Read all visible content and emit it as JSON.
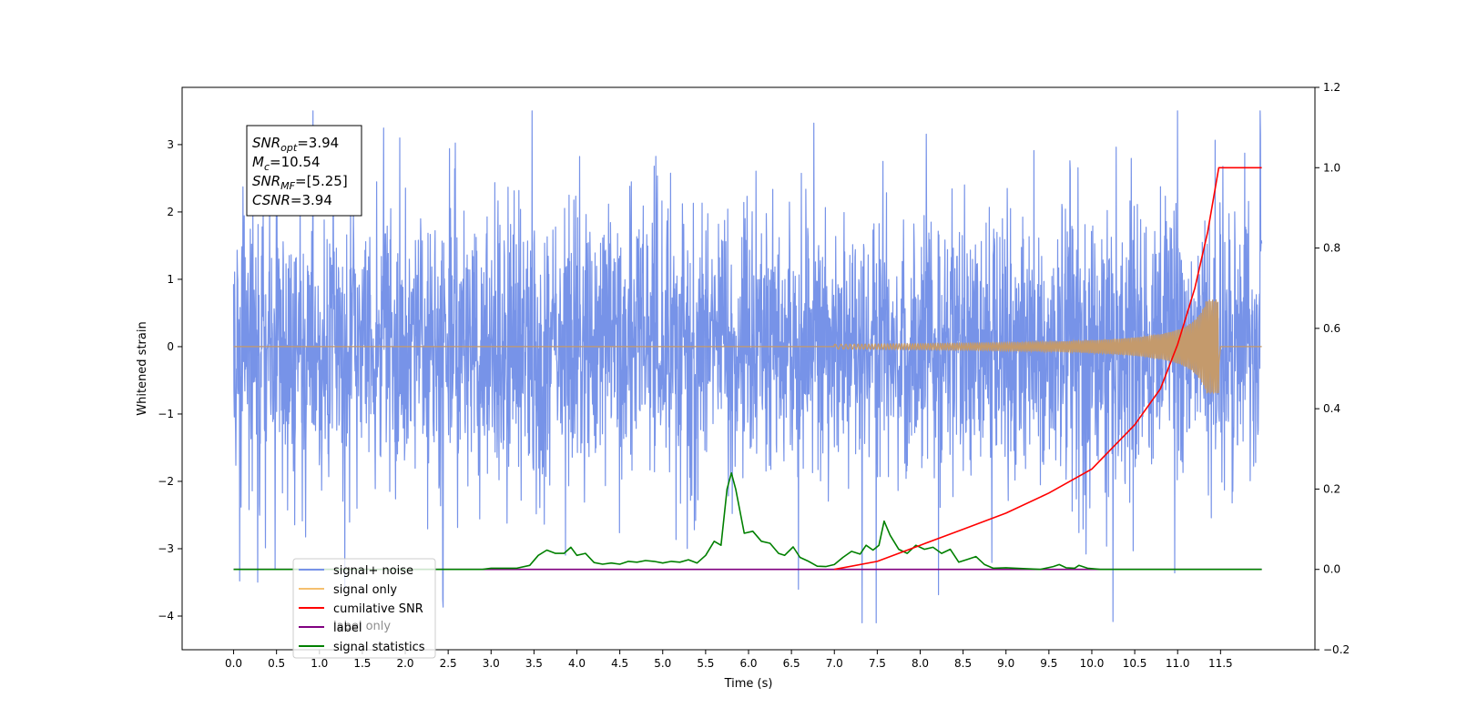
{
  "chart_data": {
    "type": "line",
    "xlabel": "Time (s)",
    "ylabel": "Whitened strain",
    "xlim": [
      -0.6,
      12.6
    ],
    "ylim": [
      -4.5,
      3.85
    ],
    "y2lim": [
      -0.2,
      1.2
    ],
    "x_ticks": [
      "0.0",
      "0.5",
      "1.0",
      "1.5",
      "2.0",
      "2.5",
      "3.0",
      "3.5",
      "4.0",
      "4.5",
      "5.0",
      "5.5",
      "6.0",
      "6.5",
      "7.0",
      "7.5",
      "8.0",
      "8.5",
      "9.0",
      "9.5",
      "10.0",
      "10.5",
      "11.0",
      "11.5"
    ],
    "y_ticks": [
      "3",
      "2",
      "1",
      "0",
      "−1",
      "−2",
      "−3",
      "−4"
    ],
    "y2_ticks": [
      "1.2",
      "1.0",
      "0.8",
      "0.6",
      "0.4",
      "0.2",
      "0.0",
      "−0.2"
    ],
    "annotation": {
      "lines": [
        {
          "base": "SNR",
          "sub": "opt",
          "value": "=3.94"
        },
        {
          "base": "M",
          "sub": "c",
          "value": "=10.54"
        },
        {
          "base": "SNR",
          "sub": "MF",
          "value": "=[5.25]"
        },
        {
          "base": "CSNR",
          "sub": "",
          "value": "=3.94"
        }
      ]
    },
    "legend": {
      "placement": "lower-left",
      "entries": [
        {
          "name": "signal+ noise",
          "color": "#7793e8"
        },
        {
          "name": "signal only",
          "color": "#f5c06f"
        },
        {
          "name": "cumilative SNR",
          "color": "#ff0000"
        },
        {
          "name": "label",
          "color": "#800080"
        },
        {
          "name": "signal statistics",
          "color": "#008000"
        }
      ],
      "hidden_text": "label only"
    },
    "series": [
      {
        "name": "signal+ noise",
        "axis": "left",
        "color": "#7793e8",
        "description_values": {
          "x_start": 0.0,
          "x_end": 11.98,
          "amplitude_typical": 2.5,
          "max": 3.5,
          "min": -4.1
        }
      },
      {
        "name": "signal only",
        "axis": "left",
        "color": "#c49a6c",
        "chirp": {
          "t_start": 7.0,
          "t_merge": 11.48,
          "peak_amplitude": 0.7
        }
      },
      {
        "name": "cumilative SNR",
        "axis": "right",
        "color": "#ff0000",
        "points": [
          [
            7.0,
            0.0
          ],
          [
            7.5,
            0.02
          ],
          [
            8.0,
            0.06
          ],
          [
            8.5,
            0.1
          ],
          [
            9.0,
            0.14
          ],
          [
            9.5,
            0.19
          ],
          [
            10.0,
            0.25
          ],
          [
            10.5,
            0.36
          ],
          [
            10.8,
            0.45
          ],
          [
            11.0,
            0.56
          ],
          [
            11.2,
            0.7
          ],
          [
            11.35,
            0.84
          ],
          [
            11.48,
            1.0
          ],
          [
            11.98,
            1.0
          ]
        ]
      },
      {
        "name": "label",
        "axis": "right",
        "color": "#800080",
        "points": [
          [
            0.0,
            0.0
          ],
          [
            11.98,
            0.0
          ]
        ]
      },
      {
        "name": "signal statistics",
        "axis": "right",
        "color": "#008000",
        "points": [
          [
            0.0,
            0.0
          ],
          [
            2.9,
            0.0
          ],
          [
            3.0,
            0.003
          ],
          [
            3.3,
            0.003
          ],
          [
            3.45,
            0.01
          ],
          [
            3.55,
            0.035
          ],
          [
            3.65,
            0.048
          ],
          [
            3.75,
            0.04
          ],
          [
            3.85,
            0.04
          ],
          [
            3.93,
            0.055
          ],
          [
            4.0,
            0.035
          ],
          [
            4.1,
            0.04
          ],
          [
            4.2,
            0.017
          ],
          [
            4.3,
            0.013
          ],
          [
            4.4,
            0.016
          ],
          [
            4.5,
            0.013
          ],
          [
            4.6,
            0.02
          ],
          [
            4.7,
            0.018
          ],
          [
            4.8,
            0.022
          ],
          [
            4.9,
            0.02
          ],
          [
            5.0,
            0.016
          ],
          [
            5.1,
            0.02
          ],
          [
            5.2,
            0.018
          ],
          [
            5.3,
            0.024
          ],
          [
            5.4,
            0.016
          ],
          [
            5.5,
            0.035
          ],
          [
            5.6,
            0.07
          ],
          [
            5.68,
            0.06
          ],
          [
            5.75,
            0.2
          ],
          [
            5.8,
            0.24
          ],
          [
            5.85,
            0.2
          ],
          [
            5.95,
            0.09
          ],
          [
            6.05,
            0.095
          ],
          [
            6.15,
            0.07
          ],
          [
            6.25,
            0.065
          ],
          [
            6.35,
            0.04
          ],
          [
            6.42,
            0.035
          ],
          [
            6.52,
            0.056
          ],
          [
            6.6,
            0.03
          ],
          [
            6.7,
            0.02
          ],
          [
            6.8,
            0.008
          ],
          [
            6.9,
            0.007
          ],
          [
            7.0,
            0.012
          ],
          [
            7.1,
            0.03
          ],
          [
            7.2,
            0.045
          ],
          [
            7.3,
            0.038
          ],
          [
            7.37,
            0.06
          ],
          [
            7.45,
            0.048
          ],
          [
            7.52,
            0.06
          ],
          [
            7.58,
            0.12
          ],
          [
            7.65,
            0.085
          ],
          [
            7.75,
            0.05
          ],
          [
            7.85,
            0.04
          ],
          [
            7.95,
            0.06
          ],
          [
            8.05,
            0.05
          ],
          [
            8.15,
            0.055
          ],
          [
            8.25,
            0.04
          ],
          [
            8.35,
            0.05
          ],
          [
            8.45,
            0.018
          ],
          [
            8.55,
            0.025
          ],
          [
            8.65,
            0.032
          ],
          [
            8.75,
            0.012
          ],
          [
            8.85,
            0.003
          ],
          [
            9.0,
            0.004
          ],
          [
            9.4,
            0.0
          ],
          [
            9.55,
            0.007
          ],
          [
            9.62,
            0.012
          ],
          [
            9.7,
            0.004
          ],
          [
            9.8,
            0.003
          ],
          [
            9.85,
            0.01
          ],
          [
            9.95,
            0.003
          ],
          [
            10.1,
            0.0
          ],
          [
            11.98,
            0.0
          ]
        ]
      }
    ]
  }
}
